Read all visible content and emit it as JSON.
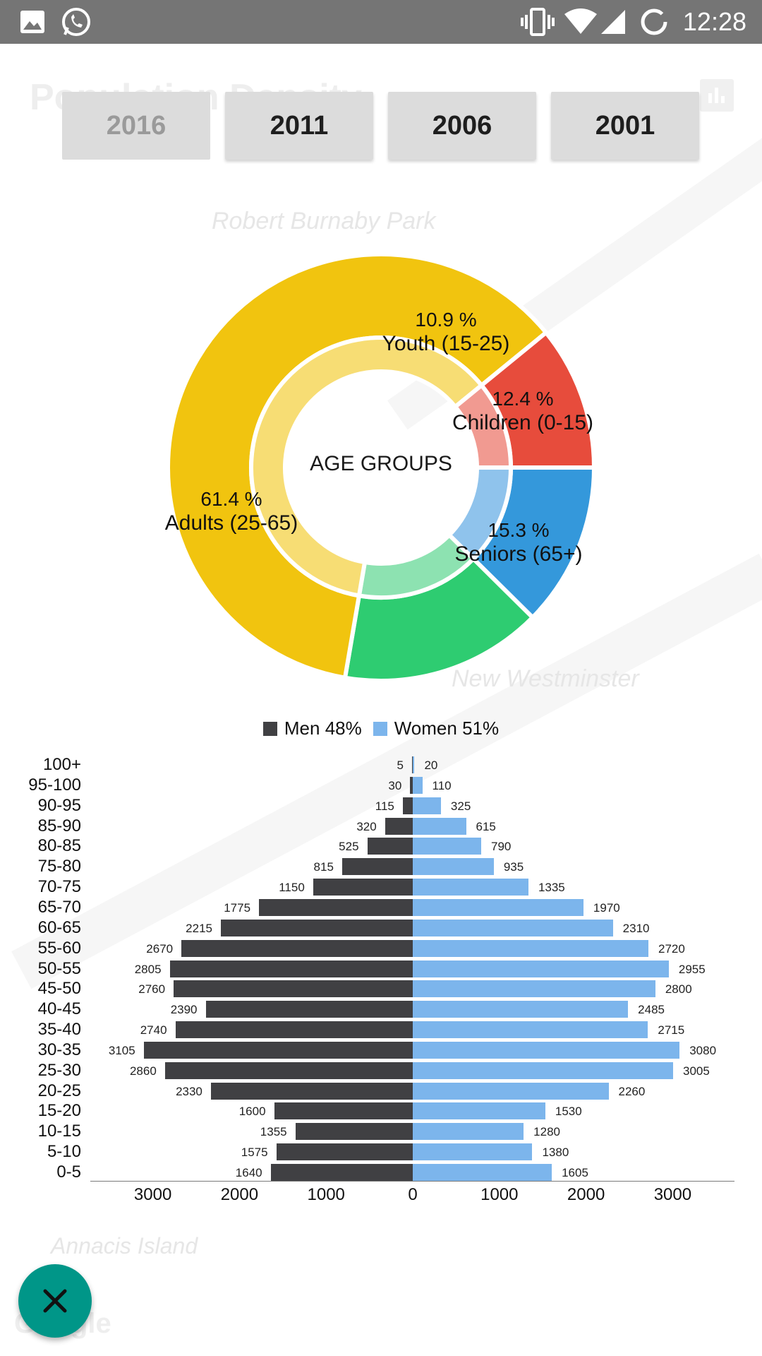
{
  "status_bar": {
    "time": "12:28",
    "icons": [
      "image-icon",
      "whatsapp-icon",
      "vibrate-icon",
      "wifi-icon",
      "signal-icon",
      "sync-icon"
    ]
  },
  "header": {
    "title": "Population Density"
  },
  "map_labels": [
    "Robert Burnaby Park",
    "New Westminster",
    "Annacis Island",
    "Google"
  ],
  "year_buttons": [
    "2016",
    "2011",
    "2006",
    "2001"
  ],
  "selected_year": "2016",
  "chart_data": [
    {
      "type": "pie",
      "title": "AGE GROUPS",
      "slices": [
        {
          "label": "Children (0-15)",
          "value": 12.4,
          "display": "12.4 %",
          "color": "#3498db",
          "inner_color": "#8fc3ec"
        },
        {
          "label": "Seniors (65+)",
          "value": 15.3,
          "display": "15.3 %",
          "color": "#2ecc71",
          "inner_color": "#8de2b1"
        },
        {
          "label": "Adults (25-65)",
          "value": 61.4,
          "display": "61.4 %",
          "color": "#f1c40f",
          "inner_color": "#f7dd74"
        },
        {
          "label": "Youth (15-25)",
          "value": 10.9,
          "display": "10.9 %",
          "color": "#e74c3c",
          "inner_color": "#f19a91"
        }
      ]
    },
    {
      "type": "bar",
      "orientation": "horizontal-diverging",
      "legend": [
        {
          "label": "Men 48%",
          "color": "#404043"
        },
        {
          "label": "Women 51%",
          "color": "#7cb5ec"
        }
      ],
      "categories": [
        "100+",
        "95-100",
        "90-95",
        "85-90",
        "80-85",
        "75-80",
        "70-75",
        "65-70",
        "60-65",
        "55-60",
        "50-55",
        "45-50",
        "40-45",
        "35-40",
        "30-35",
        "25-30",
        "20-25",
        "15-20",
        "10-15",
        "5-10",
        "0-5"
      ],
      "series": [
        {
          "name": "Men",
          "values": [
            5,
            30,
            115,
            320,
            525,
            815,
            1150,
            1775,
            2215,
            2670,
            2805,
            2760,
            2390,
            2740,
            3105,
            2860,
            2330,
            1600,
            1355,
            1575,
            1640
          ]
        },
        {
          "name": "Women",
          "values": [
            20,
            110,
            325,
            615,
            790,
            935,
            1335,
            1970,
            2310,
            2720,
            2955,
            2800,
            2485,
            2715,
            3080,
            3005,
            2260,
            1530,
            1280,
            1380,
            1605
          ]
        }
      ],
      "x_ticks": [
        "3000",
        "2000",
        "1000",
        "0",
        "1000",
        "2000",
        "3000"
      ],
      "xlim": [
        -3700,
        3700
      ],
      "grid": false
    }
  ]
}
